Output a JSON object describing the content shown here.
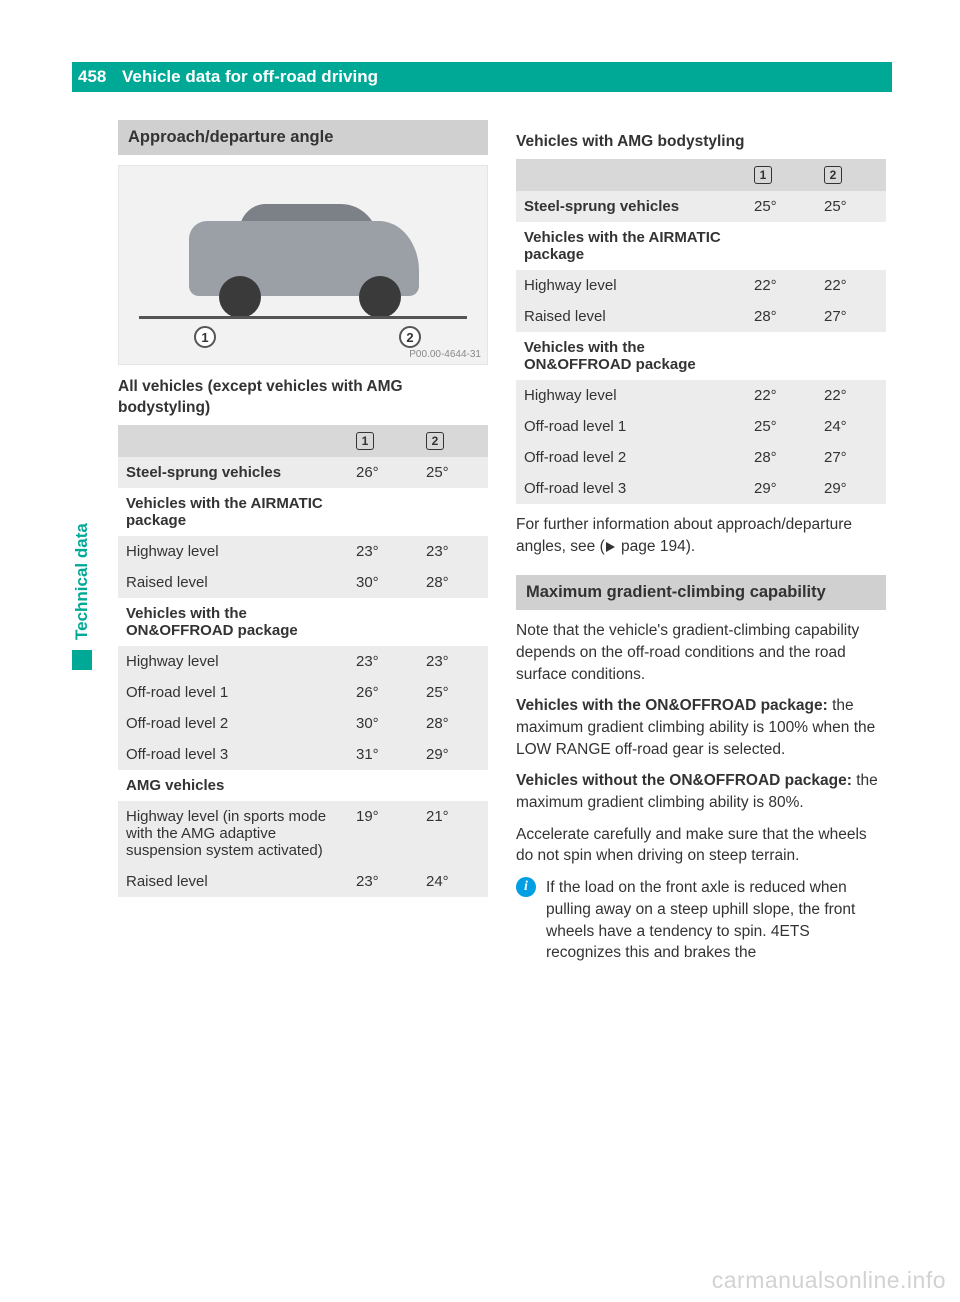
{
  "page_number": "458",
  "header_title": "Vehicle data for off-road driving",
  "side_label": "Technical data",
  "colors": {
    "accent": "#00a896",
    "heading_bg": "#d0d0d0",
    "row_shade": "#ececec",
    "info_icon": "#009fe3",
    "text": "#333333",
    "watermark": "#d2d2d2"
  },
  "left": {
    "section_heading": "Approach/departure angle",
    "diagram_code": "P00.00-4644-31",
    "callouts": [
      "1",
      "2"
    ],
    "table_title": "All vehicles (except vehicles with AMG bodystyling)",
    "table": {
      "head_icons": [
        "1",
        "2"
      ],
      "rows": [
        {
          "label": "Steel-sprung vehicles",
          "c1": "26°",
          "c2": "25°",
          "shade": true,
          "bold": true
        },
        {
          "label": "Vehicles with the AIRMATIC package",
          "c1": "",
          "c2": "",
          "subhead": true
        },
        {
          "label": "Highway level",
          "c1": "23°",
          "c2": "23°",
          "shade": true
        },
        {
          "label": "Raised level",
          "c1": "30°",
          "c2": "28°",
          "shade": true
        },
        {
          "label": "Vehicles with the ON&OFFROAD package",
          "c1": "",
          "c2": "",
          "subhead": true
        },
        {
          "label": "Highway level",
          "c1": "23°",
          "c2": "23°",
          "shade": true
        },
        {
          "label": "Off-road level 1",
          "c1": "26°",
          "c2": "25°",
          "shade": true
        },
        {
          "label": "Off-road level 2",
          "c1": "30°",
          "c2": "28°",
          "shade": true
        },
        {
          "label": "Off-road level 3",
          "c1": "31°",
          "c2": "29°",
          "shade": true
        },
        {
          "label": "AMG vehicles",
          "c1": "",
          "c2": "",
          "subhead": true
        },
        {
          "label": "Highway level (in sports mode with the AMG adaptive suspension system activated)",
          "c1": "19°",
          "c2": "21°",
          "shade": true
        },
        {
          "label": "Raised level",
          "c1": "23°",
          "c2": "24°",
          "shade": true
        }
      ]
    }
  },
  "right": {
    "table_title": "Vehicles with AMG bodystyling",
    "table": {
      "head_icons": [
        "1",
        "2"
      ],
      "rows": [
        {
          "label": "Steel-sprung vehicles",
          "c1": "25°",
          "c2": "25°",
          "shade": true,
          "bold": true
        },
        {
          "label": "Vehicles with the AIRMATIC package",
          "c1": "",
          "c2": "",
          "subhead": true
        },
        {
          "label": "Highway level",
          "c1": "22°",
          "c2": "22°",
          "shade": true
        },
        {
          "label": "Raised level",
          "c1": "28°",
          "c2": "27°",
          "shade": true
        },
        {
          "label": "Vehicles with the ON&OFFROAD package",
          "c1": "",
          "c2": "",
          "subhead": true
        },
        {
          "label": "Highway level",
          "c1": "22°",
          "c2": "22°",
          "shade": true
        },
        {
          "label": "Off-road level 1",
          "c1": "25°",
          "c2": "24°",
          "shade": true
        },
        {
          "label": "Off-road level 2",
          "c1": "28°",
          "c2": "27°",
          "shade": true
        },
        {
          "label": "Off-road level 3",
          "c1": "29°",
          "c2": "29°",
          "shade": true
        }
      ]
    },
    "footnote_pre": "For further information about approach/departure angles, see (",
    "footnote_page": " page 194).",
    "section2_heading": "Maximum gradient-climbing capability",
    "para1": "Note that the vehicle's gradient-climbing capability depends on the off-road conditions and the road surface conditions.",
    "para2_bold": "Vehicles with the ON&OFFROAD package:",
    "para2_rest": " the maximum gradient climbing ability is 100% when the LOW RANGE off-road gear is selected.",
    "para3_bold": "Vehicles without the ON&OFFROAD package:",
    "para3_rest": " the maximum gradient climbing ability is 80%.",
    "para4": "Accelerate carefully and make sure that the wheels do not spin when driving on steep terrain.",
    "info": "If the load on the front axle is reduced when pulling away on a steep uphill slope, the front wheels have a tendency to spin. 4ETS recognizes this and brakes the"
  },
  "watermark": "carmanualsonline.info"
}
